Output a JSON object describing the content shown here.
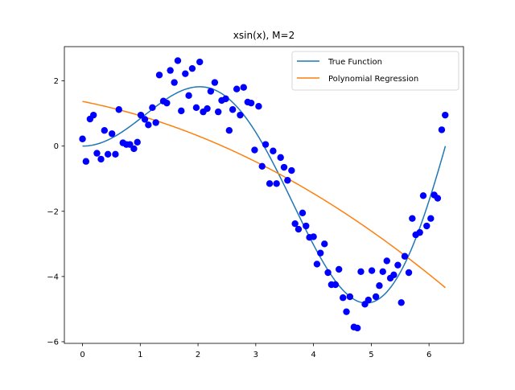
{
  "chart_data": {
    "type": "scatter",
    "title": "xsin(x), M=2",
    "xlabel": "",
    "ylabel": "",
    "xlim": [
      -0.314,
      6.597
    ],
    "ylim": [
      -6.05,
      3.05
    ],
    "xticks": [
      0,
      1,
      2,
      3,
      4,
      5,
      6
    ],
    "yticks": [
      -6,
      -4,
      -2,
      0,
      2
    ],
    "grid": false,
    "legend": {
      "placement": "top-right",
      "entries": [
        "True Function",
        "Polynomial Regression"
      ]
    },
    "series": [
      {
        "name": "True Function",
        "kind": "line",
        "color": "#1f77b4",
        "function": "x*sin(x)",
        "x_range": [
          0,
          6.283
        ]
      },
      {
        "name": "Polynomial Regression",
        "kind": "line",
        "color": "#ff7f0e",
        "coefficients": [
          1.37,
          -0.35,
          -0.089
        ],
        "x_range": [
          0,
          6.283
        ]
      },
      {
        "kind": "scatter",
        "color": "#0000ff",
        "points": [
          [
            0.0,
            0.22
          ],
          [
            0.06,
            -0.47
          ],
          [
            0.13,
            0.83
          ],
          [
            0.19,
            0.95
          ],
          [
            0.25,
            -0.22
          ],
          [
            0.32,
            -0.4
          ],
          [
            0.38,
            0.48
          ],
          [
            0.44,
            -0.25
          ],
          [
            0.51,
            0.38
          ],
          [
            0.57,
            -0.25
          ],
          [
            0.63,
            1.12
          ],
          [
            0.7,
            0.1
          ],
          [
            0.76,
            0.05
          ],
          [
            0.82,
            0.05
          ],
          [
            0.89,
            -0.08
          ],
          [
            0.95,
            0.12
          ],
          [
            1.01,
            0.95
          ],
          [
            1.08,
            0.82
          ],
          [
            1.14,
            0.65
          ],
          [
            1.21,
            1.18
          ],
          [
            1.27,
            0.72
          ],
          [
            1.33,
            2.18
          ],
          [
            1.4,
            1.38
          ],
          [
            1.46,
            1.32
          ],
          [
            1.52,
            2.32
          ],
          [
            1.59,
            1.95
          ],
          [
            1.65,
            2.62
          ],
          [
            1.71,
            1.08
          ],
          [
            1.78,
            2.22
          ],
          [
            1.84,
            1.55
          ],
          [
            1.9,
            2.38
          ],
          [
            1.97,
            1.18
          ],
          [
            2.03,
            2.58
          ],
          [
            2.09,
            1.05
          ],
          [
            2.16,
            1.15
          ],
          [
            2.22,
            1.68
          ],
          [
            2.29,
            1.95
          ],
          [
            2.35,
            1.05
          ],
          [
            2.41,
            1.4
          ],
          [
            2.48,
            1.45
          ],
          [
            2.54,
            0.48
          ],
          [
            2.6,
            1.12
          ],
          [
            2.67,
            1.75
          ],
          [
            2.73,
            0.95
          ],
          [
            2.79,
            1.8
          ],
          [
            2.86,
            1.35
          ],
          [
            2.92,
            1.32
          ],
          [
            2.98,
            -0.12
          ],
          [
            3.05,
            1.22
          ],
          [
            3.11,
            -0.62
          ],
          [
            3.17,
            0.05
          ],
          [
            3.24,
            -1.15
          ],
          [
            3.3,
            -0.15
          ],
          [
            3.36,
            -1.15
          ],
          [
            3.43,
            -0.35
          ],
          [
            3.49,
            -0.65
          ],
          [
            3.55,
            -1.05
          ],
          [
            3.62,
            -0.75
          ],
          [
            3.68,
            -2.38
          ],
          [
            3.74,
            -2.55
          ],
          [
            3.81,
            -2.05
          ],
          [
            3.87,
            -2.45
          ],
          [
            3.93,
            -2.8
          ],
          [
            4.0,
            -2.78
          ],
          [
            4.06,
            -3.62
          ],
          [
            4.12,
            -3.28
          ],
          [
            4.19,
            -3.0
          ],
          [
            4.25,
            -3.88
          ],
          [
            4.31,
            -4.25
          ],
          [
            4.38,
            -4.25
          ],
          [
            4.44,
            -3.78
          ],
          [
            4.51,
            -4.65
          ],
          [
            4.57,
            -5.08
          ],
          [
            4.63,
            -4.62
          ],
          [
            4.7,
            -5.55
          ],
          [
            4.76,
            -5.58
          ],
          [
            4.82,
            -3.85
          ],
          [
            4.89,
            -4.85
          ],
          [
            4.95,
            -4.72
          ],
          [
            5.01,
            -3.82
          ],
          [
            5.08,
            -4.62
          ],
          [
            5.14,
            -4.28
          ],
          [
            5.2,
            -3.85
          ],
          [
            5.27,
            -3.52
          ],
          [
            5.33,
            -4.05
          ],
          [
            5.39,
            -3.95
          ],
          [
            5.46,
            -3.65
          ],
          [
            5.52,
            -4.8
          ],
          [
            5.58,
            -3.38
          ],
          [
            5.65,
            -3.88
          ],
          [
            5.71,
            -2.22
          ],
          [
            5.77,
            -2.72
          ],
          [
            5.84,
            -2.65
          ],
          [
            5.9,
            -1.52
          ],
          [
            5.96,
            -2.45
          ],
          [
            6.03,
            -2.22
          ],
          [
            6.09,
            -1.5
          ],
          [
            6.15,
            -1.6
          ],
          [
            6.22,
            0.5
          ],
          [
            6.28,
            0.95
          ]
        ]
      }
    ]
  }
}
